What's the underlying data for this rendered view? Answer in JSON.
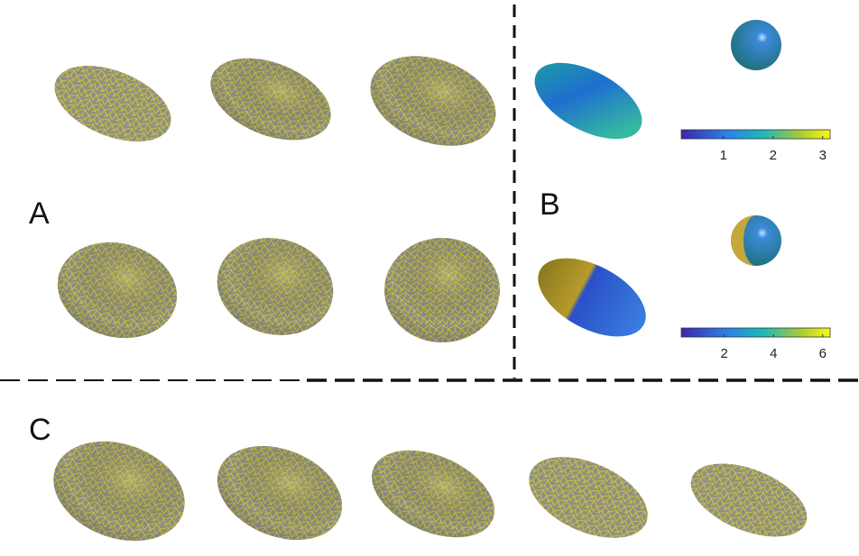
{
  "labels": {
    "a": "A",
    "b": "B",
    "c": "C"
  },
  "colorbars": [
    {
      "lim": [
        0.15,
        3.15
      ],
      "ticks": [
        1,
        2,
        3
      ]
    },
    {
      "lim": [
        0.25,
        6.3
      ],
      "ticks": [
        2,
        4,
        6
      ]
    }
  ]
}
